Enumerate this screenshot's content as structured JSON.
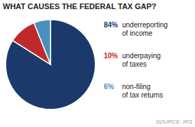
{
  "chart_data": {
    "type": "pie",
    "title": "WHAT CAUSES THE FEDERAL TAX GAP?",
    "categories": [
      "underreporting\nof income",
      "underpaying\nof taxes",
      "non-filing\nof tax returns"
    ],
    "values": [
      84,
      10,
      6
    ],
    "value_labels": [
      "84%",
      "10%",
      "6%"
    ],
    "colors": [
      "#1b3a6b",
      "#c0292b",
      "#4a8fc0"
    ],
    "data_labels": true,
    "annotations": [
      "SOURCE: IRS"
    ]
  }
}
